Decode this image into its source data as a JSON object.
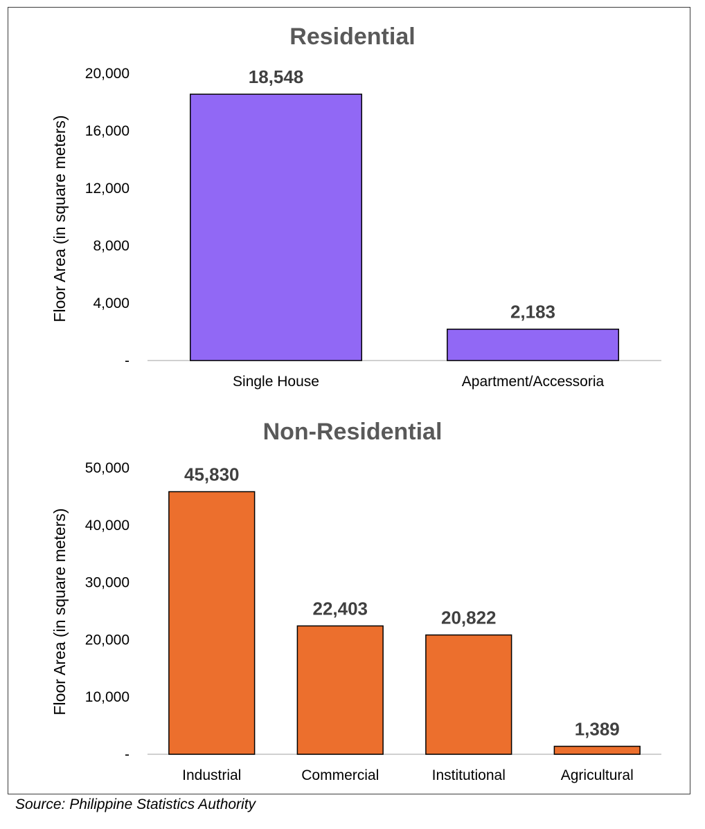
{
  "source_note": "Source: Philippine Statistics Authority",
  "chart_data": [
    {
      "type": "bar",
      "title": "Residential",
      "ylabel": "Floor Area (in square meters)",
      "xlabel": "",
      "categories": [
        "Single House",
        "Apartment/Accessoria"
      ],
      "values": [
        18548,
        2183
      ],
      "value_labels": [
        "18,548",
        "2,183"
      ],
      "ylim": [
        0,
        20000
      ],
      "yticks": [
        0,
        4000,
        8000,
        12000,
        16000,
        20000
      ],
      "ytick_labels": [
        "-",
        "4,000",
        "8,000",
        "12,000",
        "16,000",
        "20,000"
      ],
      "bar_color": "#9168f5",
      "grid": false,
      "legend": "none"
    },
    {
      "type": "bar",
      "title": "Non-Residential",
      "ylabel": "Floor Area (in square meters)",
      "xlabel": "",
      "categories": [
        "Industrial",
        "Commercial",
        "Institutional",
        "Agricultural"
      ],
      "values": [
        45830,
        22403,
        20822,
        1389
      ],
      "value_labels": [
        "45,830",
        "22,403",
        "20,822",
        "1,389"
      ],
      "ylim": [
        0,
        50000
      ],
      "yticks": [
        0,
        10000,
        20000,
        30000,
        40000,
        50000
      ],
      "ytick_labels": [
        "-",
        "10,000",
        "20,000",
        "30,000",
        "40,000",
        "50,000"
      ],
      "bar_color": "#ec6f2d",
      "grid": false,
      "legend": "none"
    }
  ]
}
